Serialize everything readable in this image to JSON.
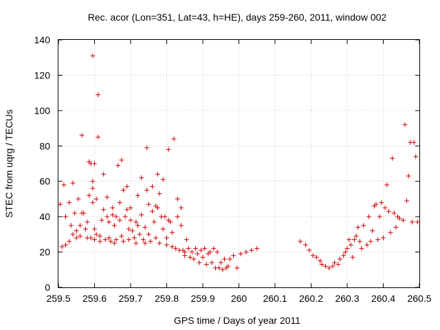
{
  "chart_data": {
    "type": "scatter",
    "title": "Rec. acor (Lon=351, Lat=43, h=HE), days 259-260, 2011, window 002",
    "xlabel": "GPS time / Days of year 2011",
    "ylabel": "STEC from uqrg / TECUs",
    "xlim": [
      259.5,
      260.5
    ],
    "ylim": [
      0,
      140
    ],
    "xticks": [
      "259.5",
      "259.6",
      "259.7",
      "259.8",
      "259.9",
      "260",
      "260.1",
      "260.2",
      "260.3",
      "260.4",
      "260.5"
    ],
    "yticks": [
      "0",
      "20",
      "40",
      "60",
      "80",
      "100",
      "120",
      "140"
    ],
    "grid": true,
    "marker": "+",
    "color": "#cc0000",
    "points": [
      [
        259.505,
        47
      ],
      [
        259.51,
        23
      ],
      [
        259.515,
        58
      ],
      [
        259.52,
        40
      ],
      [
        259.52,
        24
      ],
      [
        259.53,
        48
      ],
      [
        259.53,
        26
      ],
      [
        259.535,
        35
      ],
      [
        259.54,
        59
      ],
      [
        259.54,
        30
      ],
      [
        259.545,
        42
      ],
      [
        259.55,
        32
      ],
      [
        259.55,
        28
      ],
      [
        259.555,
        50
      ],
      [
        259.56,
        35
      ],
      [
        259.56,
        29
      ],
      [
        259.565,
        42
      ],
      [
        259.565,
        86
      ],
      [
        259.57,
        42
      ],
      [
        259.575,
        33
      ],
      [
        259.58,
        28
      ],
      [
        259.58,
        37
      ],
      [
        259.585,
        71
      ],
      [
        259.585,
        52
      ],
      [
        259.59,
        70
      ],
      [
        259.59,
        28
      ],
      [
        259.595,
        48
      ],
      [
        259.595,
        131
      ],
      [
        259.595,
        60
      ],
      [
        259.595,
        56
      ],
      [
        259.6,
        70
      ],
      [
        259.6,
        33
      ],
      [
        259.6,
        27
      ],
      [
        259.605,
        30
      ],
      [
        259.605,
        50
      ],
      [
        259.61,
        109
      ],
      [
        259.61,
        85
      ],
      [
        259.615,
        29
      ],
      [
        259.615,
        26
      ],
      [
        259.62,
        38
      ],
      [
        259.625,
        64
      ],
      [
        259.625,
        44
      ],
      [
        259.63,
        27
      ],
      [
        259.635,
        40
      ],
      [
        259.635,
        51
      ],
      [
        259.64,
        37
      ],
      [
        259.64,
        28
      ],
      [
        259.645,
        26
      ],
      [
        259.65,
        41
      ],
      [
        259.65,
        45
      ],
      [
        259.655,
        35
      ],
      [
        259.655,
        25
      ],
      [
        259.66,
        40
      ],
      [
        259.66,
        27
      ],
      [
        259.665,
        69
      ],
      [
        259.67,
        48
      ],
      [
        259.67,
        38
      ],
      [
        259.675,
        29
      ],
      [
        259.675,
        72
      ],
      [
        259.68,
        55
      ],
      [
        259.68,
        26
      ],
      [
        259.685,
        40
      ],
      [
        259.69,
        57
      ],
      [
        259.69,
        44
      ],
      [
        259.695,
        33
      ],
      [
        259.695,
        27
      ],
      [
        259.7,
        45
      ],
      [
        259.7,
        38
      ],
      [
        259.705,
        32
      ],
      [
        259.71,
        28
      ],
      [
        259.715,
        37
      ],
      [
        259.715,
        25
      ],
      [
        259.72,
        52
      ],
      [
        259.72,
        35
      ],
      [
        259.725,
        30
      ],
      [
        259.73,
        62
      ],
      [
        259.73,
        41
      ],
      [
        259.735,
        27
      ],
      [
        259.74,
        34
      ],
      [
        259.74,
        25
      ],
      [
        259.745,
        79
      ],
      [
        259.745,
        55
      ],
      [
        259.75,
        47
      ],
      [
        259.75,
        30
      ],
      [
        259.755,
        26
      ],
      [
        259.76,
        43
      ],
      [
        259.76,
        57
      ],
      [
        259.765,
        37
      ],
      [
        259.77,
        46
      ],
      [
        259.77,
        28
      ],
      [
        259.775,
        64
      ],
      [
        259.775,
        45
      ],
      [
        259.78,
        53
      ],
      [
        259.78,
        25
      ],
      [
        259.785,
        40
      ],
      [
        259.79,
        61
      ],
      [
        259.79,
        33
      ],
      [
        259.795,
        40
      ],
      [
        259.8,
        28
      ],
      [
        259.8,
        24
      ],
      [
        259.805,
        78
      ],
      [
        259.805,
        38
      ],
      [
        259.81,
        37
      ],
      [
        259.815,
        23
      ],
      [
        259.815,
        31
      ],
      [
        259.82,
        84
      ],
      [
        259.825,
        22
      ],
      [
        259.83,
        50
      ],
      [
        259.83,
        40
      ],
      [
        259.835,
        21
      ],
      [
        259.84,
        45
      ],
      [
        259.84,
        35
      ],
      [
        259.845,
        21
      ],
      [
        259.85,
        20
      ],
      [
        259.85,
        18
      ],
      [
        259.855,
        27
      ],
      [
        259.86,
        22
      ],
      [
        259.865,
        17
      ],
      [
        259.87,
        20
      ],
      [
        259.875,
        16
      ],
      [
        259.88,
        22
      ],
      [
        259.885,
        19
      ],
      [
        259.89,
        14
      ],
      [
        259.895,
        21
      ],
      [
        259.9,
        17
      ],
      [
        259.905,
        22
      ],
      [
        259.91,
        13
      ],
      [
        259.915,
        19
      ],
      [
        259.92,
        20
      ],
      [
        259.925,
        14
      ],
      [
        259.93,
        22
      ],
      [
        259.935,
        11
      ],
      [
        259.94,
        20
      ],
      [
        259.945,
        11
      ],
      [
        259.95,
        14
      ],
      [
        259.955,
        10
      ],
      [
        259.96,
        16
      ],
      [
        259.965,
        11
      ],
      [
        259.97,
        12
      ],
      [
        259.975,
        16
      ],
      [
        259.985,
        18
      ],
      [
        259.995,
        11
      ],
      [
        260.005,
        19
      ],
      [
        260.02,
        20
      ],
      [
        260.035,
        21
      ],
      [
        260.05,
        22
      ],
      [
        260.17,
        26
      ],
      [
        260.185,
        24
      ],
      [
        260.195,
        21
      ],
      [
        260.205,
        18
      ],
      [
        260.215,
        17
      ],
      [
        260.225,
        15
      ],
      [
        260.23,
        13
      ],
      [
        260.24,
        12
      ],
      [
        260.25,
        11
      ],
      [
        260.26,
        12
      ],
      [
        260.265,
        14
      ],
      [
        260.275,
        13
      ],
      [
        260.28,
        16
      ],
      [
        260.29,
        18
      ],
      [
        260.295,
        20
      ],
      [
        260.3,
        22
      ],
      [
        260.305,
        27
      ],
      [
        260.31,
        24
      ],
      [
        260.315,
        17
      ],
      [
        260.32,
        27
      ],
      [
        260.325,
        29
      ],
      [
        260.33,
        34
      ],
      [
        260.335,
        26
      ],
      [
        260.34,
        22
      ],
      [
        260.345,
        35
      ],
      [
        260.355,
        24
      ],
      [
        260.36,
        40
      ],
      [
        260.365,
        26
      ],
      [
        260.37,
        32
      ],
      [
        260.375,
        46
      ],
      [
        260.38,
        47
      ],
      [
        260.385,
        27
      ],
      [
        260.39,
        40
      ],
      [
        260.395,
        48
      ],
      [
        260.4,
        28
      ],
      [
        260.405,
        45
      ],
      [
        260.41,
        58
      ],
      [
        260.415,
        43
      ],
      [
        260.42,
        31
      ],
      [
        260.425,
        73
      ],
      [
        260.43,
        42
      ],
      [
        260.435,
        34
      ],
      [
        260.44,
        40
      ],
      [
        260.445,
        39
      ],
      [
        260.455,
        38
      ],
      [
        260.46,
        92
      ],
      [
        260.465,
        49
      ],
      [
        260.47,
        63
      ],
      [
        260.475,
        82
      ],
      [
        260.48,
        37
      ],
      [
        260.485,
        82
      ],
      [
        260.49,
        74
      ],
      [
        260.495,
        37
      ]
    ]
  }
}
